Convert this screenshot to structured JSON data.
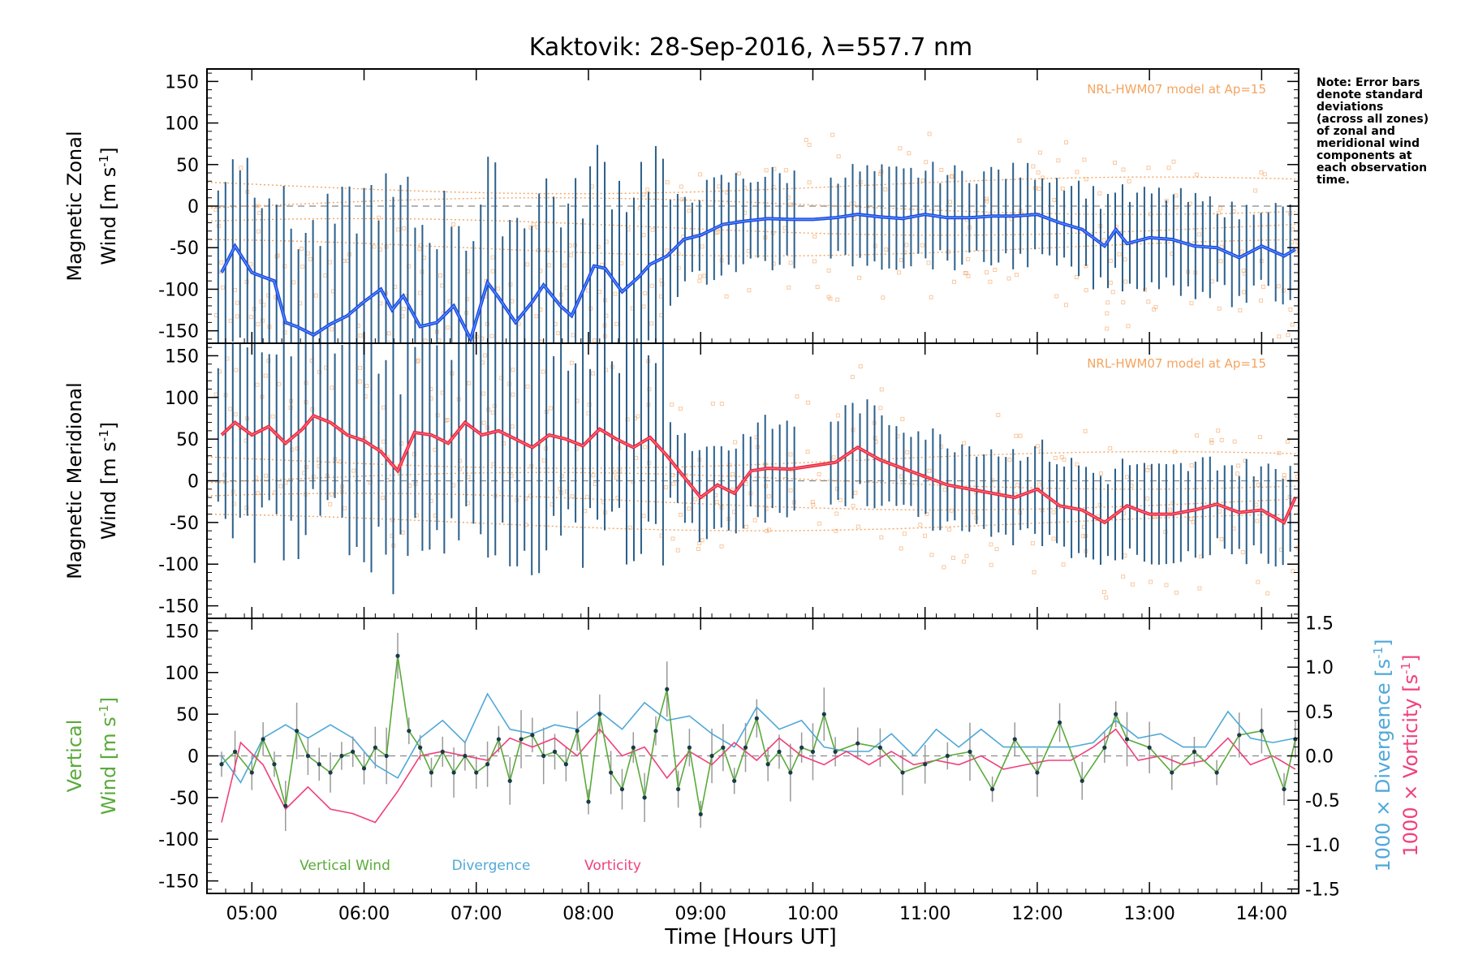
{
  "figure": {
    "title": "Kaktovik: 28-Sep-2016, λ=557.7 nm",
    "note": [
      "Note: Error bars",
      "denote standard",
      "deviations",
      "(across all zones)",
      "of zonal and",
      "meridional wind",
      "components at",
      "each observation",
      "time."
    ],
    "xlabel": "Time [Hours UT]",
    "x_ticks": [
      "05:00",
      "06:00",
      "07:00",
      "08:00",
      "09:00",
      "10:00",
      "11:00",
      "12:00",
      "13:00",
      "14:00"
    ],
    "colors": {
      "zonal": "#1f3fe0",
      "zonal_light": "#55aaff",
      "meridional": "#e8223a",
      "meridional_light": "#ff7a8a",
      "error_bar": "#2b5f8a",
      "model": "#f4a460",
      "vertical": "#5aaa3a",
      "divergence": "#4fa8d8",
      "vorticity": "#f0407a",
      "points": "#1a3a4a"
    }
  },
  "chart_data": [
    {
      "type": "line",
      "panel": "zonal",
      "ylabel_line1": "Magnetic Zonal",
      "ylabel_line2": "Wind [m s",
      "ylabel_sup": "-1",
      "ylabel_close": "]",
      "model_label": "NRL-HWM07 model at Ap=15",
      "ylim": [
        -165,
        165
      ],
      "y_ticks": [
        "150",
        "100",
        "50",
        "0",
        "-50",
        "-100",
        "-150"
      ],
      "series": [
        {
          "x": [
            4.73,
            4.85,
            5.0,
            5.1,
            5.2,
            5.3,
            5.4,
            5.55,
            5.7,
            5.85,
            6.0,
            6.15,
            6.25,
            6.35,
            6.5,
            6.65,
            6.8,
            6.95,
            7.1,
            7.2,
            7.35,
            7.5,
            7.6,
            7.75,
            7.85,
            8.05,
            8.15,
            8.3,
            8.45,
            8.55,
            8.7,
            8.85,
            9.0,
            9.2,
            9.4,
            9.6,
            9.8,
            10.0,
            10.2,
            10.4,
            10.6,
            10.8,
            11.0,
            11.2,
            11.4,
            11.6,
            11.8,
            12.0,
            12.2,
            12.4,
            12.6,
            12.7,
            12.8,
            13.0,
            13.2,
            13.4,
            13.6,
            13.8,
            14.0,
            14.2,
            14.3
          ],
          "values": [
            -80,
            -48,
            -80,
            -85,
            -90,
            -140,
            -145,
            -155,
            -142,
            -132,
            -115,
            -100,
            -125,
            -108,
            -145,
            -140,
            -120,
            -160,
            -92,
            -110,
            -140,
            -115,
            -95,
            -120,
            -132,
            -72,
            -75,
            -103,
            -85,
            -70,
            -60,
            -40,
            -35,
            -22,
            -18,
            -15,
            -16,
            -16,
            -14,
            -10,
            -13,
            -15,
            -10,
            -14,
            -14,
            -12,
            -12,
            -10,
            -20,
            -28,
            -48,
            -28,
            -45,
            -38,
            -40,
            -48,
            -50,
            -62,
            -48,
            -60,
            -52
          ]
        }
      ]
    },
    {
      "type": "line",
      "panel": "meridional",
      "ylabel_line1": "Magnetic Meridional",
      "ylabel_line2": "Wind [m s",
      "ylabel_sup": "-1",
      "ylabel_close": "]",
      "model_label": "NRL-HWM07 model at Ap=15",
      "ylim": [
        -165,
        165
      ],
      "y_ticks": [
        "150",
        "100",
        "50",
        "0",
        "-50",
        "-100",
        "-150"
      ],
      "series": [
        {
          "x": [
            4.73,
            4.85,
            5.0,
            5.15,
            5.3,
            5.45,
            5.55,
            5.7,
            5.85,
            6.0,
            6.15,
            6.3,
            6.45,
            6.6,
            6.75,
            6.9,
            7.05,
            7.2,
            7.35,
            7.5,
            7.65,
            7.8,
            7.95,
            8.1,
            8.25,
            8.4,
            8.55,
            8.7,
            8.85,
            9.0,
            9.15,
            9.3,
            9.45,
            9.6,
            9.8,
            10.0,
            10.2,
            10.4,
            10.6,
            10.8,
            11.0,
            11.2,
            11.4,
            11.6,
            11.8,
            12.0,
            12.2,
            12.4,
            12.6,
            12.8,
            13.0,
            13.2,
            13.4,
            13.6,
            13.8,
            14.0,
            14.2,
            14.3
          ],
          "values": [
            55,
            70,
            55,
            65,
            45,
            62,
            78,
            70,
            55,
            48,
            35,
            12,
            58,
            55,
            45,
            70,
            55,
            60,
            50,
            40,
            55,
            50,
            42,
            62,
            50,
            40,
            52,
            30,
            5,
            -20,
            -5,
            -15,
            12,
            15,
            14,
            18,
            22,
            40,
            25,
            15,
            5,
            -5,
            -10,
            -15,
            -20,
            -10,
            -30,
            -35,
            -50,
            -30,
            -40,
            -40,
            -35,
            -28,
            -38,
            -35,
            -50,
            -20
          ]
        }
      ]
    },
    {
      "type": "line",
      "panel": "vertical",
      "ylabel_line1": "Vertical",
      "ylabel_line2": "Wind [m s",
      "ylabel_sup": "-1",
      "ylabel_close": "]",
      "right_label_div": "1000 × Divergence [s",
      "right_label_vor": "1000 × Vorticity [s",
      "right_sup": "-1",
      "right_close": "]",
      "ylim": [
        -165,
        165
      ],
      "y_ticks": [
        "150",
        "100",
        "50",
        "0",
        "-50",
        "-100",
        "-150"
      ],
      "y2lim": [
        -1.55,
        1.55
      ],
      "y2_ticks": [
        "1.5",
        "1.0",
        "0.5",
        "0.0",
        "-0.5",
        "-1.0",
        "-1.5"
      ],
      "legend": [
        "Vertical Wind",
        "Divergence",
        "Vorticity"
      ],
      "series": [
        {
          "name": "Vertical Wind",
          "x": [
            4.73,
            4.85,
            5.0,
            5.1,
            5.2,
            5.3,
            5.4,
            5.5,
            5.6,
            5.7,
            5.8,
            5.9,
            6.0,
            6.1,
            6.2,
            6.3,
            6.4,
            6.5,
            6.6,
            6.7,
            6.8,
            6.9,
            7.0,
            7.1,
            7.2,
            7.3,
            7.4,
            7.5,
            7.6,
            7.7,
            7.8,
            7.9,
            8.0,
            8.1,
            8.2,
            8.3,
            8.4,
            8.5,
            8.6,
            8.7,
            8.8,
            8.9,
            9.0,
            9.1,
            9.2,
            9.3,
            9.4,
            9.5,
            9.6,
            9.7,
            9.8,
            9.9,
            10.0,
            10.1,
            10.2,
            10.4,
            10.6,
            10.8,
            11.0,
            11.2,
            11.4,
            11.6,
            11.8,
            12.0,
            12.2,
            12.4,
            12.6,
            12.7,
            12.8,
            13.0,
            13.2,
            13.4,
            13.6,
            13.8,
            14.0,
            14.2,
            14.3
          ],
          "values": [
            -10,
            5,
            -20,
            20,
            -10,
            -60,
            30,
            0,
            -10,
            -20,
            0,
            5,
            -15,
            10,
            0,
            120,
            30,
            10,
            -20,
            5,
            -20,
            0,
            -20,
            -10,
            20,
            -30,
            20,
            25,
            0,
            5,
            -10,
            30,
            -55,
            50,
            -20,
            -40,
            10,
            -50,
            30,
            80,
            -40,
            10,
            -70,
            0,
            10,
            -30,
            10,
            45,
            -10,
            5,
            -20,
            10,
            5,
            50,
            5,
            15,
            10,
            -20,
            -10,
            0,
            5,
            -40,
            20,
            -20,
            40,
            -30,
            10,
            50,
            20,
            10,
            -20,
            5,
            -20,
            25,
            30,
            -40,
            20
          ]
        },
        {
          "name": "Divergence",
          "x": [
            4.73,
            4.9,
            5.1,
            5.3,
            5.5,
            5.7,
            5.9,
            6.1,
            6.3,
            6.5,
            6.7,
            6.9,
            7.1,
            7.3,
            7.5,
            7.7,
            7.9,
            8.1,
            8.3,
            8.5,
            8.7,
            8.9,
            9.1,
            9.3,
            9.5,
            9.7,
            9.9,
            10.1,
            10.3,
            10.5,
            10.7,
            10.9,
            11.1,
            11.3,
            11.5,
            11.7,
            11.9,
            12.1,
            12.3,
            12.5,
            12.7,
            12.9,
            13.1,
            13.3,
            13.5,
            13.7,
            13.9,
            14.1,
            14.3
          ],
          "values": [
            0.0,
            -0.3,
            0.2,
            0.35,
            0.2,
            0.35,
            0.2,
            -0.1,
            -0.25,
            0.2,
            0.4,
            0.15,
            0.7,
            0.3,
            0.25,
            0.35,
            0.3,
            0.5,
            0.3,
            0.6,
            0.4,
            0.45,
            0.25,
            0.1,
            0.55,
            0.3,
            0.4,
            0.1,
            0.05,
            0.05,
            0.25,
            0.0,
            0.3,
            0.1,
            0.3,
            0.1,
            0.1,
            0.1,
            0.1,
            0.15,
            0.4,
            0.2,
            0.25,
            0.1,
            0.1,
            0.5,
            0.2,
            0.15,
            0.2
          ]
        },
        {
          "name": "Vorticity",
          "x": [
            4.73,
            4.9,
            5.1,
            5.3,
            5.5,
            5.7,
            5.9,
            6.1,
            6.3,
            6.5,
            6.7,
            6.9,
            7.1,
            7.3,
            7.5,
            7.7,
            7.9,
            8.1,
            8.3,
            8.5,
            8.7,
            8.9,
            9.1,
            9.3,
            9.5,
            9.7,
            9.9,
            10.1,
            10.3,
            10.5,
            10.7,
            10.9,
            11.1,
            11.3,
            11.5,
            11.7,
            11.9,
            12.1,
            12.3,
            12.5,
            12.7,
            12.9,
            13.1,
            13.3,
            13.5,
            13.7,
            13.9,
            14.1,
            14.3
          ],
          "values": [
            -0.75,
            0.15,
            -0.1,
            -0.6,
            -0.35,
            -0.6,
            -0.65,
            -0.75,
            -0.4,
            0.0,
            0.05,
            0.0,
            -0.05,
            0.2,
            0.1,
            0.2,
            0.0,
            0.3,
            0.0,
            0.1,
            -0.25,
            0.05,
            -0.1,
            0.15,
            -0.05,
            0.2,
            0.0,
            -0.1,
            0.05,
            -0.1,
            0.05,
            -0.1,
            -0.05,
            -0.1,
            0.0,
            -0.15,
            -0.1,
            -0.05,
            -0.05,
            0.1,
            0.3,
            -0.05,
            0.0,
            -0.1,
            -0.05,
            0.2,
            -0.1,
            0.0,
            -0.15
          ]
        }
      ]
    }
  ]
}
